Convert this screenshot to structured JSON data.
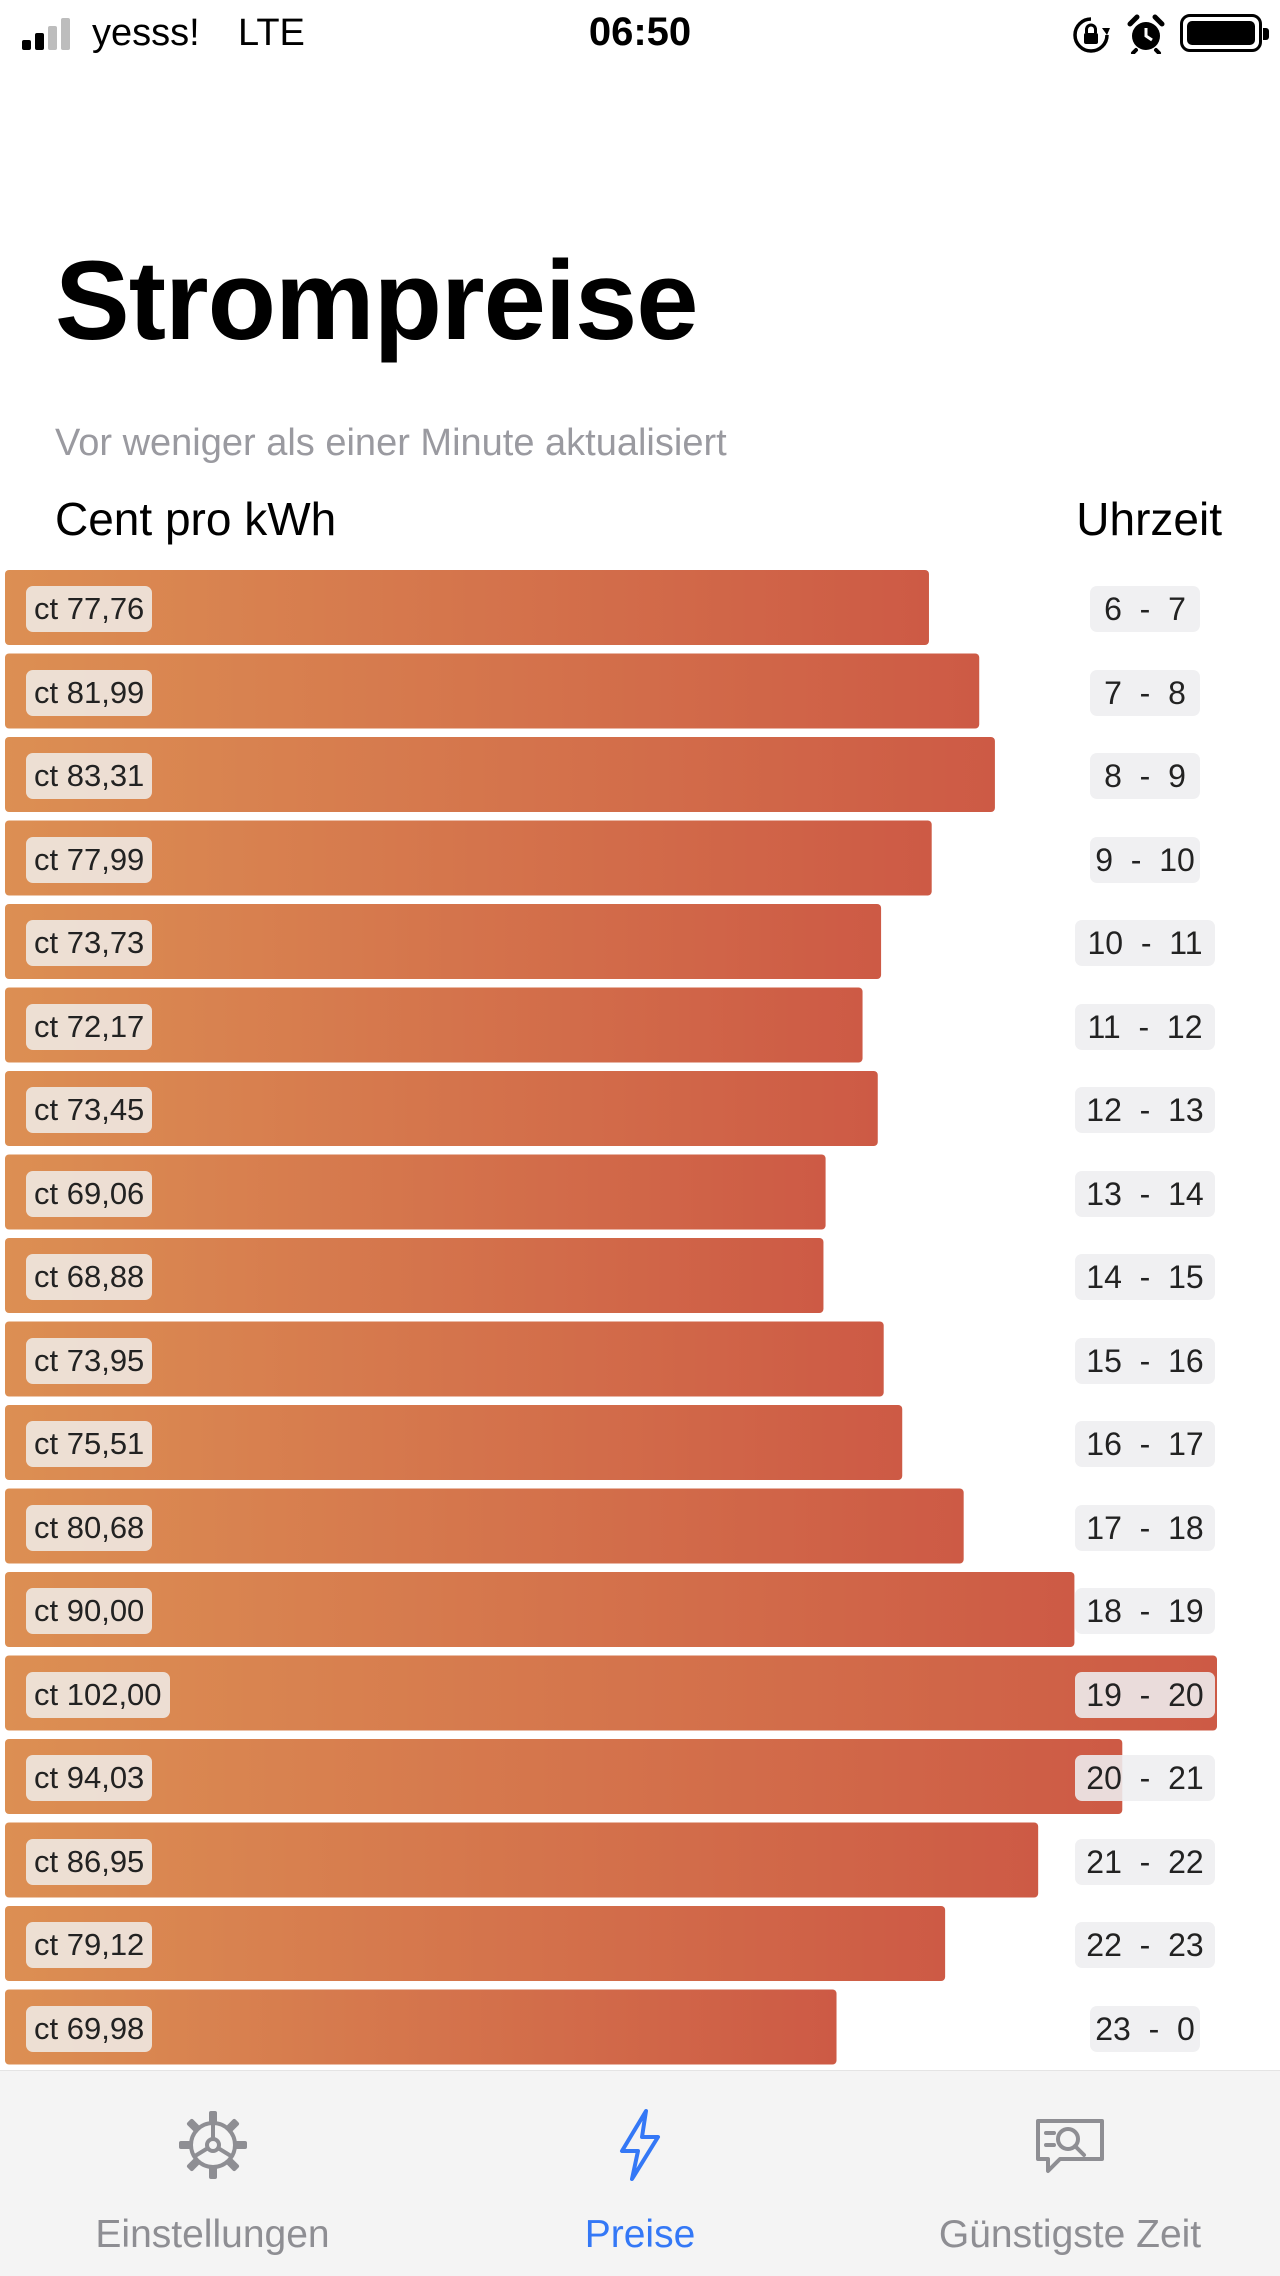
{
  "status_bar": {
    "carrier": "yesss!",
    "network": "LTE",
    "time": "06:50",
    "icons": [
      "signal-icon",
      "rotation-lock-icon",
      "alarm-icon",
      "battery-icon"
    ]
  },
  "header": {
    "title": "Strompreise",
    "updated": "Vor weniger als einer Minute aktualisiert",
    "col_left": "Cent pro kWh",
    "col_right": "Uhrzeit"
  },
  "colors": {
    "bar_start": "#dc8f53",
    "bar_end": "#cd5a45",
    "accent": "#3478f6",
    "tab_inactive": "#8e8e93"
  },
  "rows": [
    {
      "price": "ct 77,76",
      "value": 77.76,
      "time": "6  -  7"
    },
    {
      "price": "ct 81,99",
      "value": 81.99,
      "time": "7  -  8"
    },
    {
      "price": "ct 83,31",
      "value": 83.31,
      "time": "8  -  9"
    },
    {
      "price": "ct 77,99",
      "value": 77.99,
      "time": "9  -  10"
    },
    {
      "price": "ct 73,73",
      "value": 73.73,
      "time": "10  -  11"
    },
    {
      "price": "ct 72,17",
      "value": 72.17,
      "time": "11  -  12"
    },
    {
      "price": "ct 73,45",
      "value": 73.45,
      "time": "12  -  13"
    },
    {
      "price": "ct 69,06",
      "value": 69.06,
      "time": "13  -  14"
    },
    {
      "price": "ct 68,88",
      "value": 68.88,
      "time": "14  -  15"
    },
    {
      "price": "ct 73,95",
      "value": 73.95,
      "time": "15  -  16"
    },
    {
      "price": "ct 75,51",
      "value": 75.51,
      "time": "16  -  17"
    },
    {
      "price": "ct 80,68",
      "value": 80.68,
      "time": "17  -  18"
    },
    {
      "price": "ct 90,00",
      "value": 90.0,
      "time": "18  -  19"
    },
    {
      "price": "ct 102,00",
      "value": 102.0,
      "time": "19  -  20"
    },
    {
      "price": "ct 94,03",
      "value": 94.03,
      "time": "20  -  21"
    },
    {
      "price": "ct 86,95",
      "value": 86.95,
      "time": "21  -  22"
    },
    {
      "price": "ct 79,12",
      "value": 79.12,
      "time": "22  -  23"
    },
    {
      "price": "ct 69,98",
      "value": 69.98,
      "time": "23  -  0"
    }
  ],
  "tab_bar": {
    "tabs": [
      {
        "label": "Einstellungen",
        "icon": "gear-icon",
        "active": false
      },
      {
        "label": "Preise",
        "icon": "lightning-icon",
        "active": true
      },
      {
        "label": "Günstigste Zeit",
        "icon": "search-message-icon",
        "active": false
      }
    ]
  }
}
